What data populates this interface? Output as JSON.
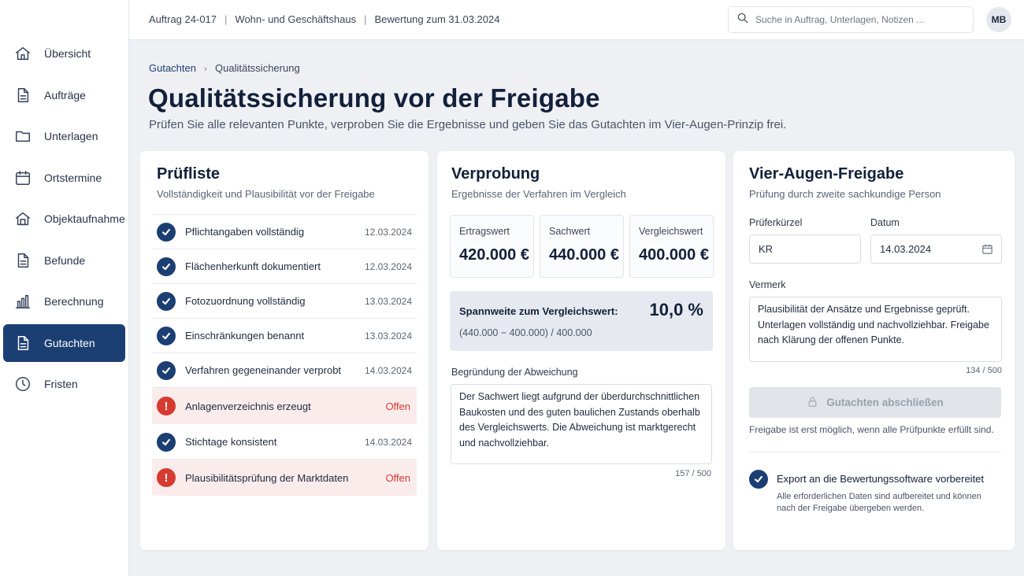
{
  "sidebar": {
    "items": [
      {
        "label": "Übersicht",
        "icon": "home-icon"
      },
      {
        "label": "Aufträge",
        "icon": "document-icon"
      },
      {
        "label": "Unterlagen",
        "icon": "folder-icon"
      },
      {
        "label": "Ortstermine",
        "icon": "calendar-icon"
      },
      {
        "label": "Objektaufnahme",
        "icon": "house-icon"
      },
      {
        "label": "Befunde",
        "icon": "document-icon"
      },
      {
        "label": "Berechnung",
        "icon": "bar-chart-icon"
      },
      {
        "label": "Gutachten",
        "icon": "document-icon",
        "active": true
      },
      {
        "label": "Fristen",
        "icon": "clock-icon"
      }
    ]
  },
  "topbar": {
    "order": "Auftrag 24-017",
    "sep": "|",
    "object": "Wohn- und Geschäftshaus",
    "valuation": "Bewertung zum 31.03.2024",
    "search_placeholder": "Suche in Auftrag, Unterlagen, Notizen ...",
    "avatar": "MB"
  },
  "breadcrumb": {
    "parent": "Gutachten",
    "current": "Qualitätssicherung"
  },
  "page": {
    "title": "Qualitätssicherung vor der Freigabe",
    "subtitle": "Prüfen Sie alle relevanten Punkte, verproben Sie die Ergebnisse und geben Sie das Gutachten im Vier-Augen-Prinzip frei."
  },
  "checklist": {
    "title": "Prüfliste",
    "subtitle": "Vollständigkeit und Plausibilität vor der Freigabe",
    "items": [
      {
        "label": "Pflichtangaben vollständig",
        "status": "12.03.2024",
        "done": true
      },
      {
        "label": "Flächenherkunft dokumentiert",
        "status": "12.03.2024",
        "done": true
      },
      {
        "label": "Fotozuordnung vollständig",
        "status": "13.03.2024",
        "done": true
      },
      {
        "label": "Einschränkungen benannt",
        "status": "13.03.2024",
        "done": true
      },
      {
        "label": "Verfahren gegeneinander verprobt",
        "status": "14.03.2024",
        "done": true
      },
      {
        "label": "Anlagenverzeichnis erzeugt",
        "status": "Offen",
        "done": false
      },
      {
        "label": "Stichtage konsistent",
        "status": "14.03.2024",
        "done": true
      },
      {
        "label": "Plausibilitätsprüfung der Marktdaten",
        "status": "Offen",
        "done": false
      }
    ],
    "warn_glyph": "!"
  },
  "verprobung": {
    "title": "Verprobung",
    "subtitle": "Ergebnisse der Verfahren im Vergleich",
    "values": [
      {
        "label": "Ertragswert",
        "value": "420.000 €"
      },
      {
        "label": "Sachwert",
        "value": "440.000 €"
      },
      {
        "label": "Vergleichswert",
        "value": "400.000 €"
      }
    ],
    "spread_label": "Spannweite zum Vergleichswert:",
    "spread_value": "10,0 %",
    "spread_formula": "(440.000 − 400.000) / 400.000",
    "reason_label": "Begründung der Abweichung",
    "reason_text": "Der Sachwert liegt aufgrund der überdurchschnittlichen Baukosten und des guten baulichen Zustands oberhalb des Vergleichswerts. Die Abweichung ist marktgerecht und nachvollziehbar.",
    "reason_counter": "157 / 500"
  },
  "freigabe": {
    "title": "Vier-Augen-Freigabe",
    "subtitle": "Prüfung durch zweite sachkundige Person",
    "reviewer_label": "Prüferkürzel",
    "reviewer_value": "KR",
    "date_label": "Datum",
    "date_value": "14.03.2024",
    "note_label": "Vermerk",
    "note_text": "Plausibilität der Ansätze und Ergebnisse geprüft. Unterlagen vollständig und nachvollziehbar. Freigabe nach Klärung der offenen Punkte.",
    "note_counter": "134 / 500",
    "button_label": "Gutachten abschließen",
    "hint": "Freigabe ist erst möglich, wenn alle Prüfpunkte erfüllt sind.",
    "export_title": "Export an die Bewertungssoftware vorbereitet",
    "export_text": "Alle erforderlichen Daten sind aufbereitet und können nach der Freigabe übergeben werden."
  }
}
